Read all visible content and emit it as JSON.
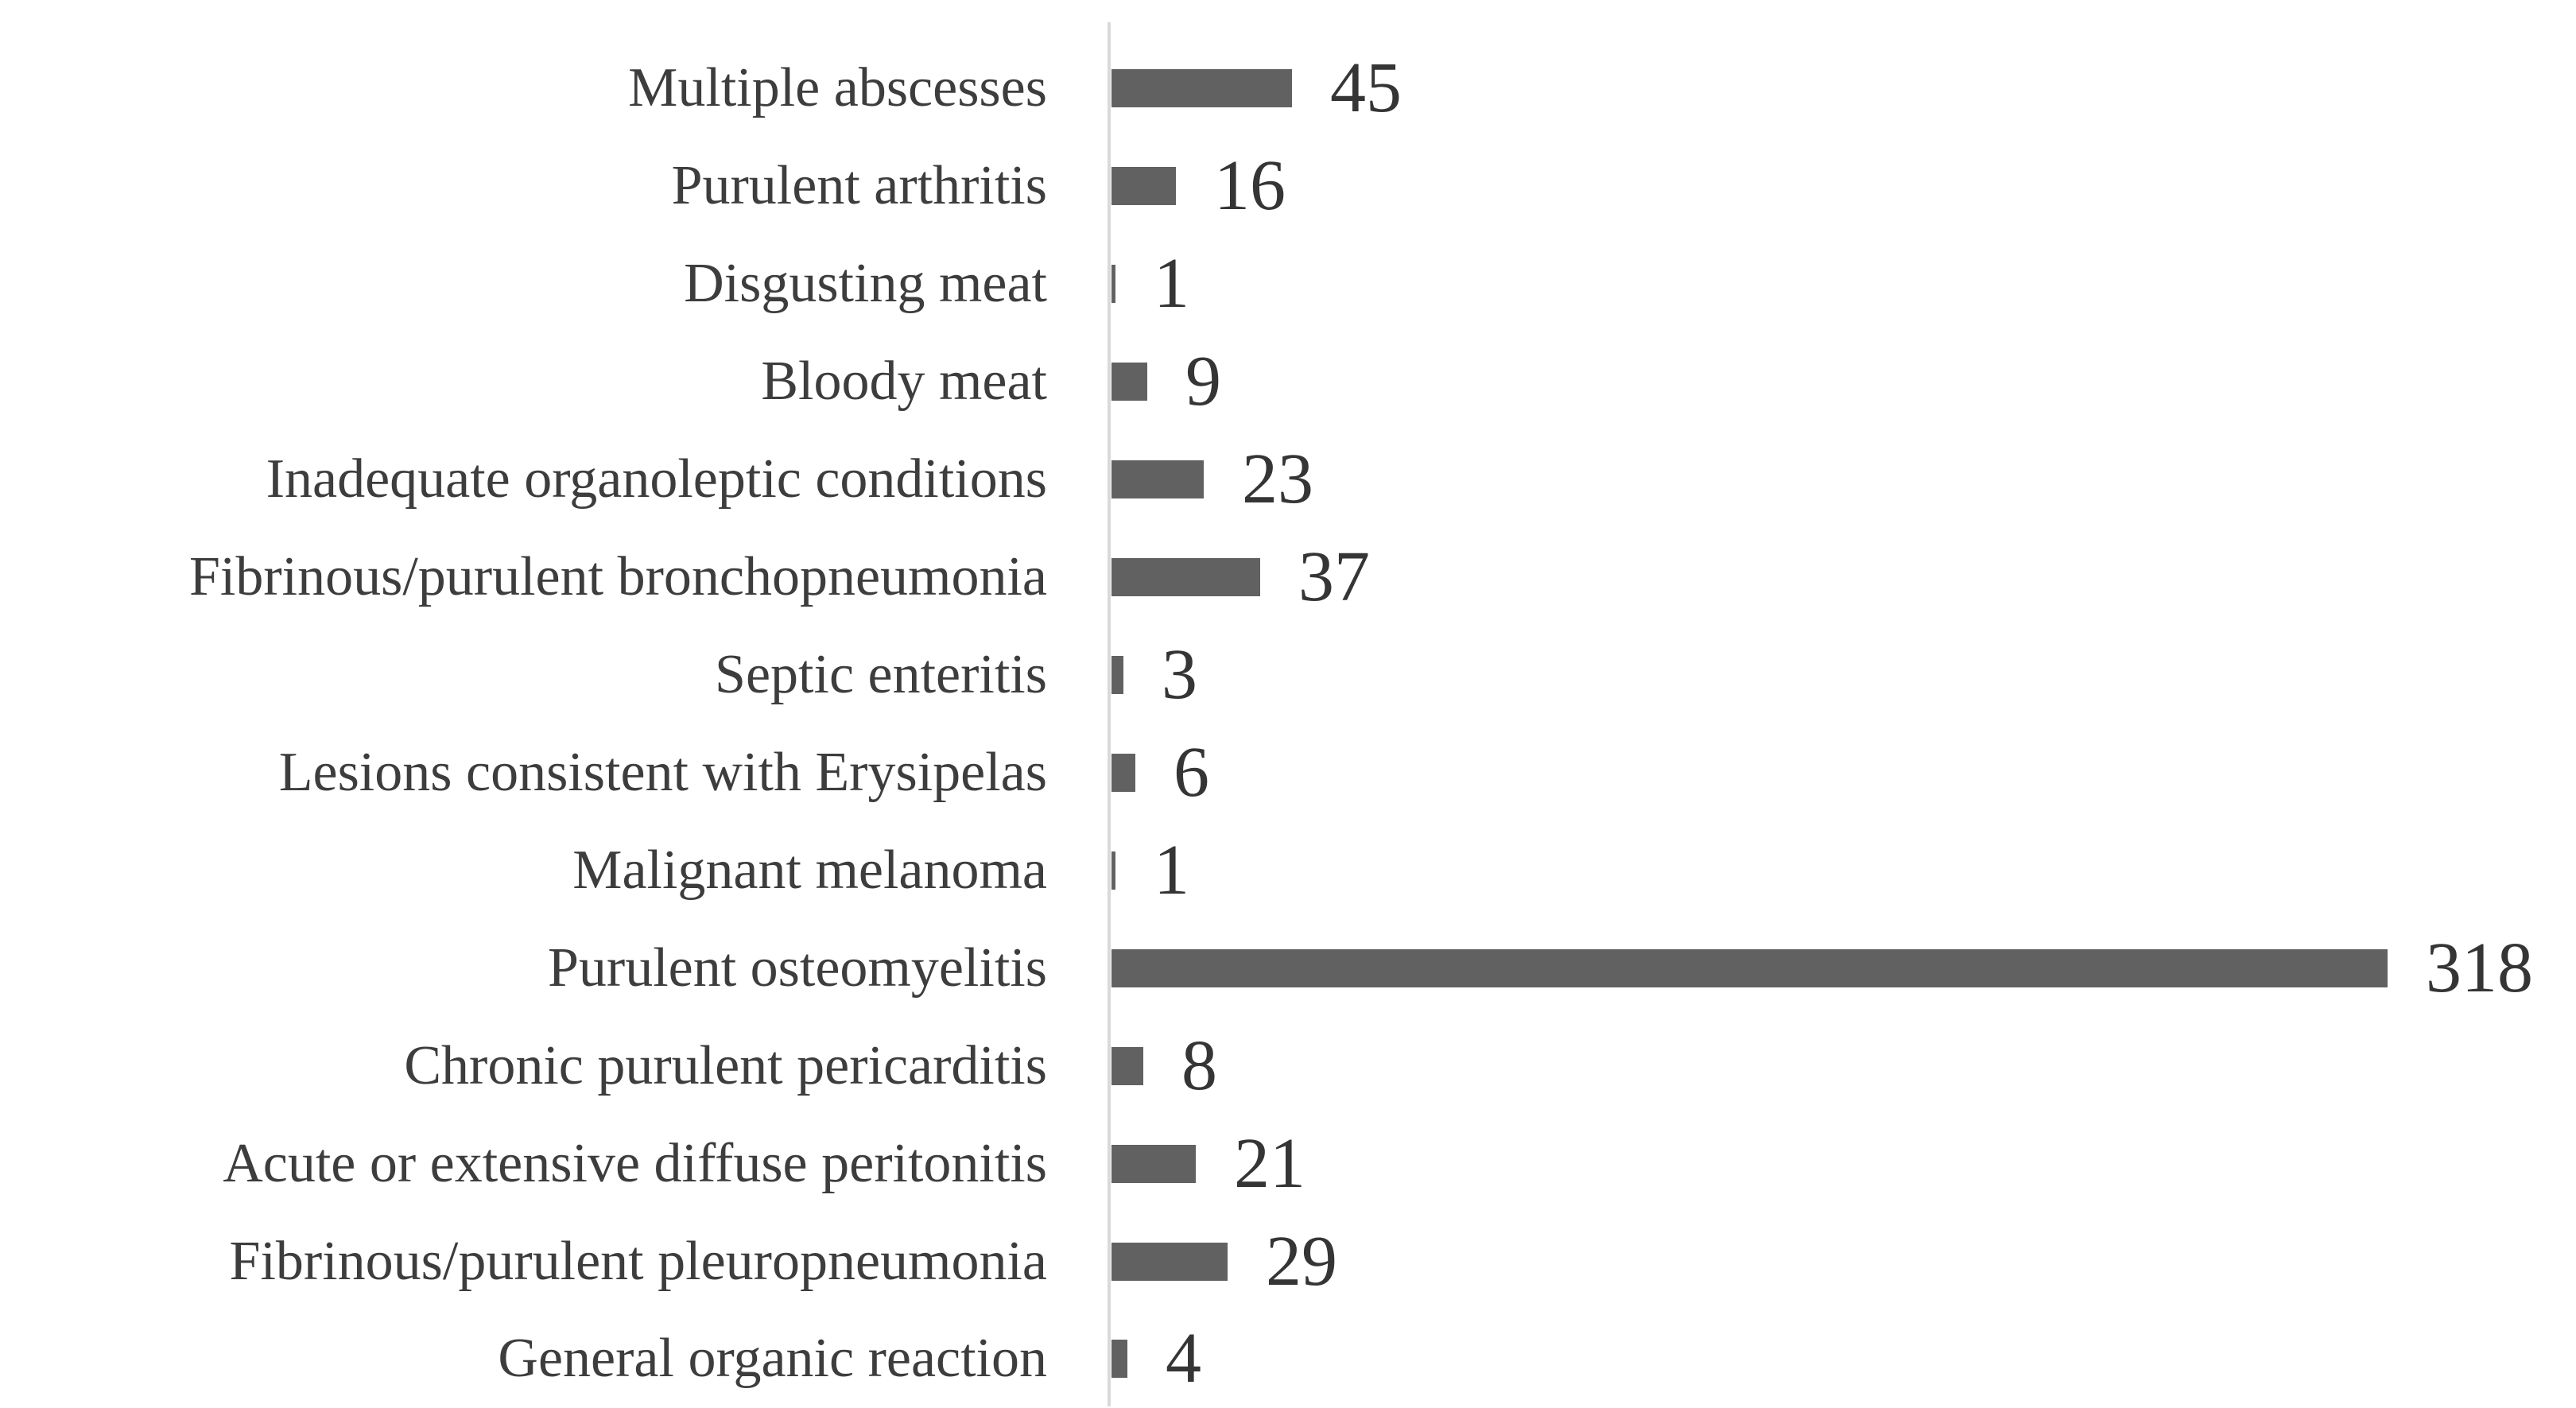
{
  "chart_data": {
    "type": "bar",
    "orientation": "horizontal",
    "title": "",
    "xlabel": "",
    "ylabel": "",
    "categories": [
      "Multiple abscesses",
      "Purulent arthritis",
      "Disgusting meat",
      "Bloody meat",
      "Inadequate organoleptic conditions",
      "Fibrinous/purulent bronchopneumonia",
      "Septic enteritis",
      "Lesions consistent with Erysipelas",
      "Malignant melanoma",
      "Purulent osteomyelitis",
      "Chronic purulent pericarditis",
      "Acute or extensive diffuse peritonitis",
      "Fibrinous/purulent pleuropneumonia",
      "General organic reaction"
    ],
    "values": [
      45,
      16,
      1,
      9,
      23,
      37,
      3,
      6,
      1,
      318,
      8,
      21,
      29,
      4
    ],
    "xlim": [
      0,
      330
    ],
    "grid": false,
    "legend": false,
    "data_labels": true,
    "colors": {
      "bar": "#616161",
      "axis_line": "#d9d9d9",
      "category_label": "#3d3d3d",
      "value_label": "#353535",
      "background": "#ffffff"
    }
  }
}
